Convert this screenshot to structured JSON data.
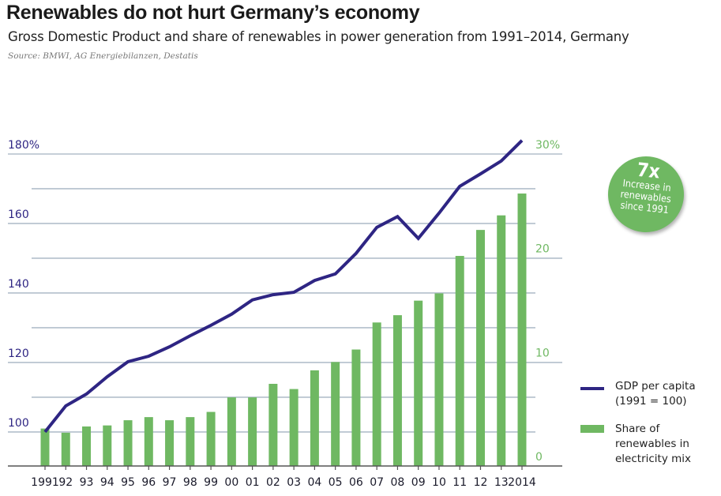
{
  "header": {
    "title": "Renewables do not hurt Germany’s economy",
    "subtitle": "Gross Domestic Product and share of renewables in power generation from 1991–2014, Germany",
    "source": "Source: BMWI,  AG Energiebilanzen, Destatis"
  },
  "badge": {
    "big": "7x",
    "line1": "Increase in",
    "line2": "renewables",
    "line3": "since 1991"
  },
  "legend": {
    "gdp_line1": "GDP per capita",
    "gdp_line2": "(1991 = 100)",
    "share_line1": "Share of",
    "share_line2": "renewables in",
    "share_line3": "electricity mix"
  },
  "colors": {
    "gdp": "#2e2583",
    "renewables": "#6fb862",
    "grid": "#b3bfcc",
    "left_axis_text": "#2e2583",
    "right_axis_text": "#6fb862"
  },
  "chart_data": {
    "type": "bar+line",
    "title": "Renewables do not hurt Germany’s economy",
    "subtitle": "Gross Domestic Product and share of renewables in power generation from 1991–2014, Germany",
    "categories": [
      "1991",
      "92",
      "93",
      "94",
      "95",
      "96",
      "97",
      "98",
      "99",
      "00",
      "01",
      "02",
      "03",
      "04",
      "05",
      "06",
      "07",
      "08",
      "09",
      "10",
      "11",
      "12",
      "13",
      "2014"
    ],
    "series": [
      {
        "name": "GDP per capita (1991 = 100)",
        "type": "line",
        "axis": "left",
        "values": [
          100,
          107.5,
          110.9,
          115.9,
          120.2,
          121.8,
          124.5,
          127.7,
          130.7,
          133.9,
          138.0,
          139.5,
          140.2,
          143.6,
          145.5,
          151.4,
          158.9,
          162.0,
          155.7,
          163.0,
          170.7,
          174.3,
          178.0,
          183.9
        ]
      },
      {
        "name": "Share of renewables in electricity mix",
        "type": "bar",
        "axis": "right",
        "values": [
          3.6,
          3.2,
          3.8,
          3.9,
          4.4,
          4.7,
          4.4,
          4.7,
          5.2,
          6.6,
          6.6,
          7.9,
          7.4,
          9.2,
          10.0,
          11.2,
          13.8,
          14.5,
          15.9,
          16.6,
          20.2,
          22.7,
          24.1,
          26.2
        ]
      }
    ],
    "left_axis": {
      "ticks": [
        "100",
        "120",
        "140",
        "160",
        "180%"
      ],
      "tick_values": [
        100,
        120,
        140,
        160,
        180
      ],
      "range": [
        90.2,
        180
      ]
    },
    "right_axis": {
      "ticks": [
        "0",
        "10",
        "20",
        "30%"
      ],
      "tick_values": [
        0,
        10,
        20,
        30
      ],
      "range": [
        0,
        30
      ]
    },
    "grid": true,
    "legend_position": "right"
  }
}
